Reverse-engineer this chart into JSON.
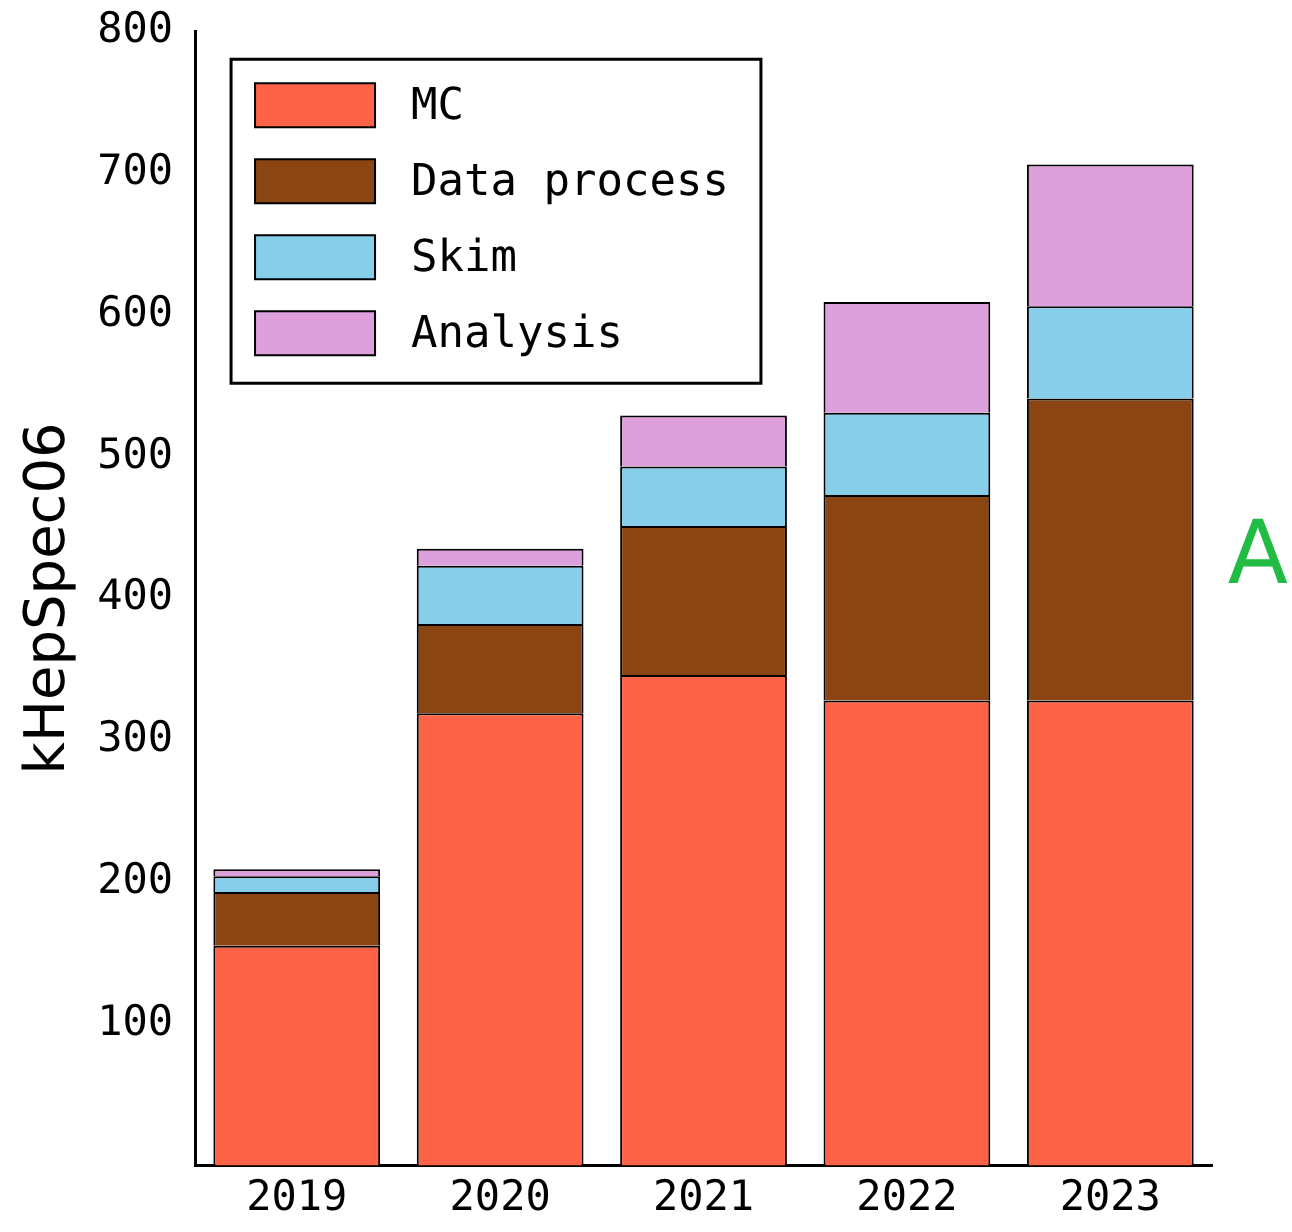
{
  "chart_data": {
    "type": "bar",
    "ylabel": "kHepSpec06",
    "categories": [
      "2019",
      "2020",
      "2021",
      "2022",
      "2023"
    ],
    "stacked": true,
    "legend": "top left",
    "grid": false,
    "ylim": [
      0,
      800
    ],
    "yticks": [
      100,
      200,
      300,
      400,
      500,
      600,
      700,
      800
    ],
    "series": [
      {
        "name": "MC",
        "color": "#ff6347",
        "values": [
          155,
          319,
          346,
          328,
          328
        ]
      },
      {
        "name": "Data process",
        "color": "#8b4513",
        "values": [
          38,
          63,
          105,
          145,
          213
        ]
      },
      {
        "name": "Skim",
        "color": "#87ceeb",
        "values": [
          11,
          41,
          42,
          58,
          65
        ]
      },
      {
        "name": "Analysis",
        "color": "#dda0dd",
        "values": [
          5,
          12,
          36,
          78,
          100
        ]
      }
    ],
    "annotations": [
      "A"
    ]
  }
}
